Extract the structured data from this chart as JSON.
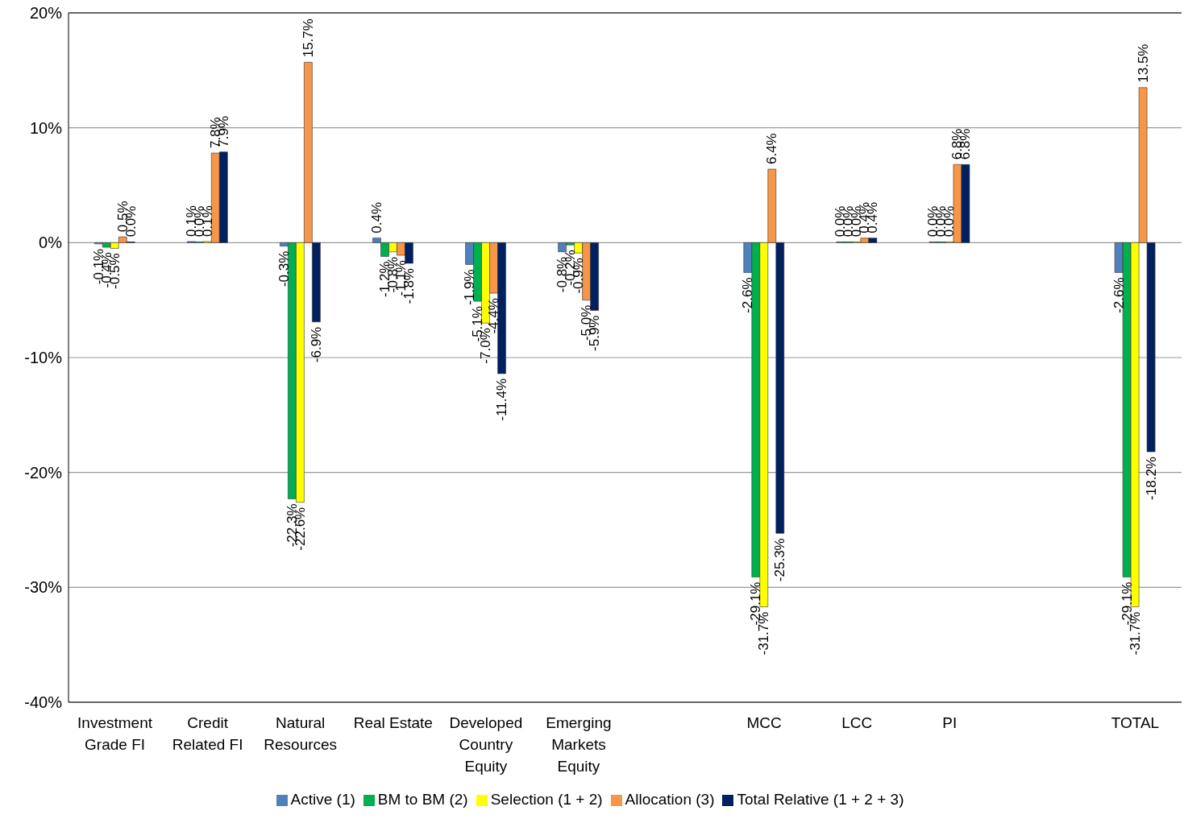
{
  "chart_data": {
    "type": "bar",
    "categories": [
      "Investment Grade FI",
      "Credit Related FI",
      "Natural Resources",
      "Real Estate",
      "Developed Country Equity",
      "Emerging Markets Equity",
      null,
      "MCC",
      "LCC",
      "PI",
      null,
      "TOTAL"
    ],
    "series": [
      {
        "name": "Active (1)",
        "color": "#4f81bd",
        "values": [
          -0.1,
          0.1,
          -0.3,
          0.4,
          -1.9,
          -0.8,
          null,
          -2.6,
          0.0,
          0.0,
          null,
          -2.6
        ],
        "value_labels": [
          "-0.1%",
          "0.1%",
          "-0.3%",
          "0.4%",
          "-1.9%",
          "-0.8%",
          null,
          "-2.6%",
          "0.0%",
          "0.0%",
          null,
          "-2.6%"
        ]
      },
      {
        "name": "BM to BM (2)",
        "color": "#00b050",
        "values": [
          -0.4,
          0.0,
          -22.3,
          -1.2,
          -5.1,
          -0.2,
          null,
          -29.1,
          0.0,
          0.0,
          null,
          -29.1
        ],
        "value_labels": [
          "-0.4%",
          "0.0%",
          "-22.3%",
          "-1.2%",
          "-5.1%",
          "-0.2%",
          null,
          "-29.1%",
          "0.0%",
          "0.0%",
          null,
          "-29.1%"
        ]
      },
      {
        "name": "Selection (1 + 2)",
        "color": "#ffff00",
        "values": [
          -0.5,
          0.1,
          -22.6,
          -0.8,
          -7.0,
          -0.9,
          null,
          -31.7,
          0.0,
          0.0,
          null,
          -31.7
        ],
        "value_labels": [
          "-0.5%",
          "0.1%",
          "-22.6%",
          "-0.8%",
          "-7.0%",
          "-0.9%",
          null,
          "-31.7%",
          "0.0%",
          "0.0%",
          null,
          "-31.7%"
        ]
      },
      {
        "name": "Allocation (3)",
        "color": "#f79646",
        "values": [
          0.5,
          7.8,
          15.7,
          -1.1,
          -4.4,
          -5.0,
          null,
          6.4,
          0.4,
          6.8,
          null,
          13.5
        ],
        "value_labels": [
          "0.5%",
          "7.8%",
          "15.7%",
          "-1.1%",
          "-4.4%",
          "-5.0%",
          null,
          "6.4%",
          "0.4%",
          "6.8%",
          null,
          "13.5%"
        ]
      },
      {
        "name": "Total Relative  (1 + 2 + 3)",
        "color": "#002060",
        "values": [
          0.0,
          7.9,
          -6.9,
          -1.8,
          -11.4,
          -5.9,
          null,
          -25.3,
          0.4,
          6.8,
          null,
          -18.2
        ],
        "value_labels": [
          "0.0%",
          "7.9%",
          "-6.9%",
          "-1.8%",
          "-11.4%",
          "-5.9%",
          null,
          "-25.3%",
          "0.4%",
          "6.8%",
          null,
          "-18.2%"
        ]
      }
    ],
    "ylim": [
      -40,
      20
    ],
    "yticks": [
      {
        "value": -40,
        "label": "-40%"
      },
      {
        "value": -30,
        "label": "-30%"
      },
      {
        "value": -20,
        "label": "-20%"
      },
      {
        "value": -10,
        "label": "-10%"
      },
      {
        "value": 0,
        "label": "0%"
      },
      {
        "value": 10,
        "label": "10%"
      },
      {
        "value": 20,
        "label": "20%"
      }
    ],
    "grid": "y",
    "legend": "bottom"
  }
}
